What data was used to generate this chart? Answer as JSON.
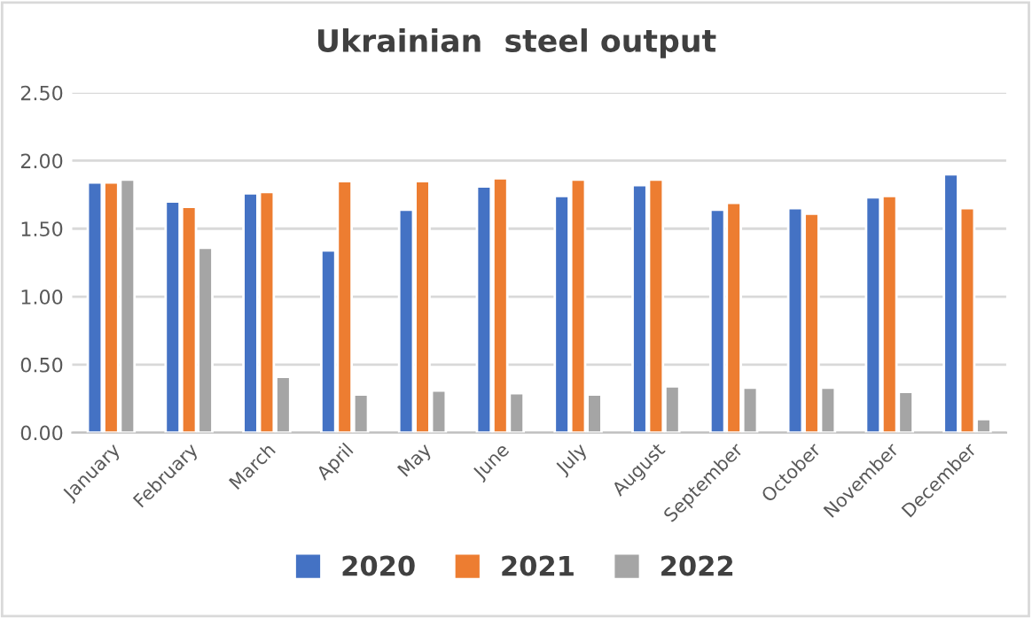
{
  "chart_data": {
    "type": "bar",
    "title": "Ukrainian  steel output",
    "categories": [
      "January",
      "February",
      "March",
      "April",
      "May",
      "June",
      "July",
      "August",
      "September",
      "October",
      "November",
      "December"
    ],
    "series": [
      {
        "name": "2020",
        "color": "#4472c4",
        "values": [
          1.84,
          1.7,
          1.76,
          1.34,
          1.64,
          1.81,
          1.74,
          1.82,
          1.64,
          1.65,
          1.73,
          1.9
        ]
      },
      {
        "name": "2021",
        "color": "#ed7d31",
        "values": [
          1.84,
          1.66,
          1.77,
          1.85,
          1.85,
          1.87,
          1.86,
          1.86,
          1.69,
          1.61,
          1.74,
          1.65
        ]
      },
      {
        "name": "2022",
        "color": "#a5a5a5",
        "values": [
          1.86,
          1.36,
          0.41,
          0.28,
          0.31,
          0.29,
          0.28,
          0.34,
          0.33,
          0.33,
          0.3,
          0.1
        ]
      }
    ],
    "ylim": [
      0,
      2.5
    ],
    "yticks": [
      {
        "value": 0,
        "label": "0.00"
      },
      {
        "value": 0.5,
        "label": "0.50"
      },
      {
        "value": 1,
        "label": "1.00"
      },
      {
        "value": 1.5,
        "label": "1.50"
      },
      {
        "value": 2,
        "label": "2.00"
      },
      {
        "value": 2.5,
        "label": "2.50"
      }
    ],
    "grid": "y",
    "legend": "bottom"
  }
}
